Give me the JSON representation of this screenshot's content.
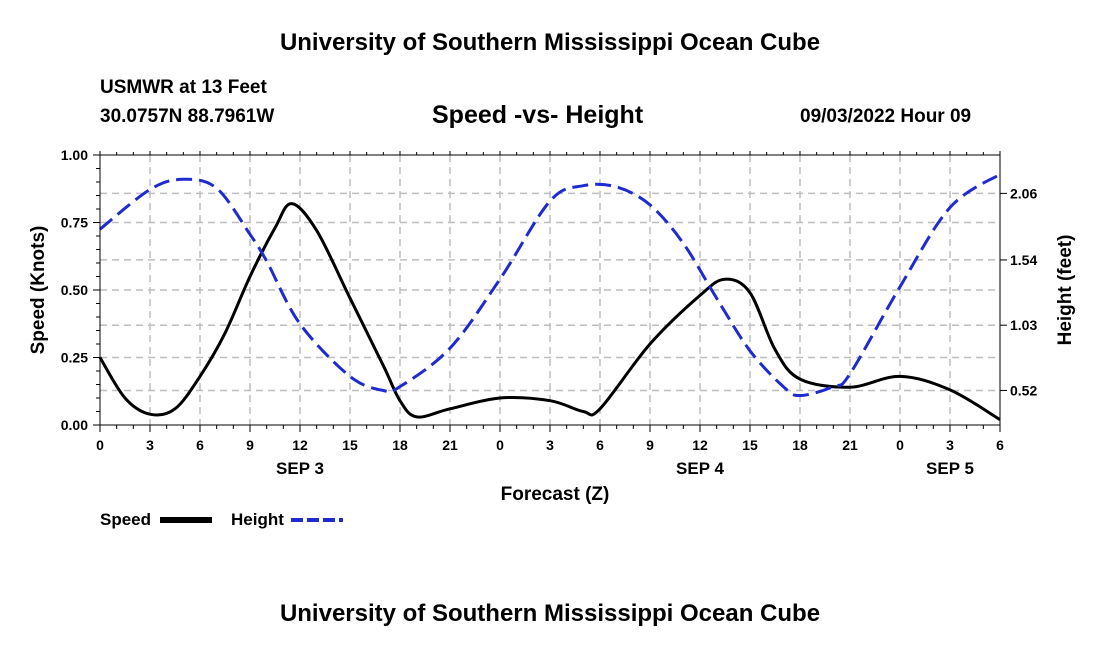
{
  "header": {
    "main_title": "University of Southern Mississippi Ocean Cube",
    "station": "USMWR at 13 Feet",
    "coords": "30.0757N  88.7961W",
    "datetime": "09/03/2022 Hour 09"
  },
  "footer": {
    "title": "University of Southern Mississippi Ocean Cube"
  },
  "chart_data": {
    "type": "line",
    "title": "Speed -vs- Height",
    "xlabel": "Forecast (Z)",
    "ylabel": "Speed (Knots)",
    "y2label": "Height (feet)",
    "x_tick_labels": [
      "0",
      "3",
      "6",
      "9",
      "12",
      "15",
      "18",
      "21",
      "0",
      "3",
      "6",
      "9",
      "12",
      "15",
      "18",
      "21",
      "0",
      "3",
      "6"
    ],
    "date_labels": [
      {
        "label": "SEP 3",
        "x_hours": 12
      },
      {
        "label": "SEP 4",
        "x_hours": 36
      },
      {
        "label": "SEP 5",
        "x_hours": 51
      }
    ],
    "xlim": [
      0,
      54
    ],
    "ylim": [
      0,
      1.0
    ],
    "y_ticks": [
      "0.00",
      "0.25",
      "0.50",
      "0.75",
      "1.00"
    ],
    "y2lim": [
      0.25,
      2.36
    ],
    "y2_ticks": [
      "0.52",
      "1.03",
      "1.54",
      "2.06"
    ],
    "grid": true,
    "series": [
      {
        "name": "Speed",
        "axis": "left",
        "color": "#000000",
        "style": "solid",
        "points": [
          [
            0,
            0.25
          ],
          [
            1.5,
            0.1
          ],
          [
            3,
            0.04
          ],
          [
            4.5,
            0.06
          ],
          [
            6,
            0.18
          ],
          [
            7.5,
            0.34
          ],
          [
            9,
            0.55
          ],
          [
            10.5,
            0.73
          ],
          [
            11.5,
            0.82
          ],
          [
            13,
            0.72
          ],
          [
            15,
            0.47
          ],
          [
            17,
            0.22
          ],
          [
            18,
            0.09
          ],
          [
            19,
            0.03
          ],
          [
            21,
            0.06
          ],
          [
            24,
            0.1
          ],
          [
            27,
            0.09
          ],
          [
            29,
            0.05
          ],
          [
            30,
            0.06
          ],
          [
            33,
            0.3
          ],
          [
            36,
            0.48
          ],
          [
            37.5,
            0.54
          ],
          [
            39,
            0.49
          ],
          [
            40.5,
            0.28
          ],
          [
            42,
            0.17
          ],
          [
            45,
            0.14
          ],
          [
            48,
            0.18
          ],
          [
            51,
            0.13
          ],
          [
            54,
            0.02
          ]
        ]
      },
      {
        "name": "Height",
        "axis": "right",
        "color": "#1f2bd0",
        "style": "dashed",
        "points": [
          [
            0,
            1.78
          ],
          [
            3,
            2.09
          ],
          [
            5,
            2.17
          ],
          [
            7,
            2.1
          ],
          [
            9,
            1.74
          ],
          [
            10,
            1.53
          ],
          [
            12,
            1.04
          ],
          [
            15,
            0.63
          ],
          [
            17,
            0.52
          ],
          [
            18,
            0.55
          ],
          [
            21,
            0.85
          ],
          [
            24,
            1.39
          ],
          [
            27,
            2.0
          ],
          [
            29,
            2.12
          ],
          [
            31,
            2.11
          ],
          [
            33,
            1.97
          ],
          [
            35,
            1.67
          ],
          [
            37,
            1.24
          ],
          [
            39,
            0.83
          ],
          [
            41,
            0.55
          ],
          [
            42,
            0.48
          ],
          [
            44,
            0.55
          ],
          [
            45,
            0.65
          ],
          [
            48,
            1.33
          ],
          [
            51,
            1.95
          ],
          [
            54,
            2.21
          ]
        ]
      }
    ],
    "legend": [
      {
        "label": "Speed",
        "color": "#000000",
        "style": "solid"
      },
      {
        "label": "Height",
        "color": "#1f2bd0",
        "style": "dashed"
      }
    ],
    "legend_position": "bottom-left"
  }
}
